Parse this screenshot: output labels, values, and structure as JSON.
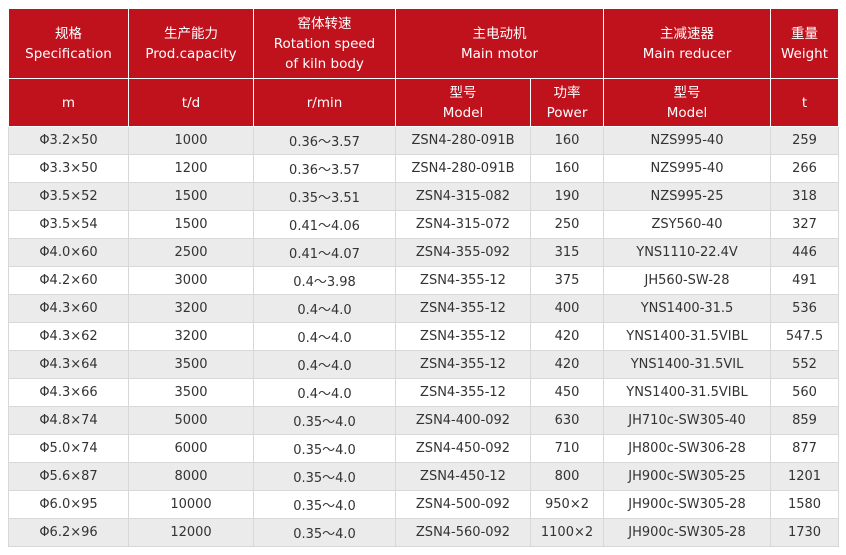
{
  "header": {
    "row1": [
      [
        "规格",
        "Specification"
      ],
      [
        "生产能力",
        "Prod.capacity"
      ],
      [
        "窑体转速",
        "Rotation speed",
        "of kiln body"
      ],
      [
        "主电动机",
        "Main motor"
      ],
      [
        "主减速器",
        "Main reducer"
      ],
      [
        "重量",
        "Weight"
      ]
    ],
    "row2": [
      [
        "m"
      ],
      [
        "t/d"
      ],
      [
        "r/min"
      ],
      [
        "型号",
        "Model"
      ],
      [
        "功率",
        "Power"
      ],
      [
        "型号",
        "Model"
      ],
      [
        "t"
      ]
    ]
  },
  "table": {
    "rows": [
      [
        "Φ3.2×50",
        "1000",
        "0.36～3.57",
        "ZSN4-280-091B",
        "160",
        "NZS995-40",
        "259"
      ],
      [
        "Φ3.3×50",
        "1200",
        "0.36～3.57",
        "ZSN4-280-091B",
        "160",
        "NZS995-40",
        "266"
      ],
      [
        "Φ3.5×52",
        "1500",
        "0.35～3.51",
        "ZSN4-315-082",
        "190",
        "NZS995-25",
        "318"
      ],
      [
        "Φ3.5×54",
        "1500",
        "0.41～4.06",
        "ZSN4-315-072",
        "250",
        "ZSY560-40",
        "327"
      ],
      [
        "Φ4.0×60",
        "2500",
        "0.41～4.07",
        "ZSN4-355-092",
        "315",
        "YNS1110-22.4V",
        "446"
      ],
      [
        "Φ4.2×60",
        "3000",
        "0.4～3.98",
        "ZSN4-355-12",
        "375",
        "JH560-SW-28",
        "491"
      ],
      [
        "Φ4.3×60",
        "3200",
        "0.4～4.0",
        "ZSN4-355-12",
        "400",
        "YNS1400-31.5",
        "536"
      ],
      [
        "Φ4.3×62",
        "3200",
        "0.4～4.0",
        "ZSN4-355-12",
        "420",
        "YNS1400-31.5VIBL",
        "547.5"
      ],
      [
        "Φ4.3×64",
        "3500",
        "0.4～4.0",
        "ZSN4-355-12",
        "420",
        "YNS1400-31.5VIL",
        "552"
      ],
      [
        "Φ4.3×66",
        "3500",
        "0.4～4.0",
        "ZSN4-355-12",
        "450",
        "YNS1400-31.5VIBL",
        "560"
      ],
      [
        "Φ4.8×74",
        "5000",
        "0.35～4.0",
        "ZSN4-400-092",
        "630",
        "JH710c-SW305-40",
        "859"
      ],
      [
        "Φ5.0×74",
        "6000",
        "0.35～4.0",
        "ZSN4-450-092",
        "710",
        "JH800c-SW306-28",
        "877"
      ],
      [
        "Φ5.6×87",
        "8000",
        "0.35～4.0",
        "ZSN4-450-12",
        "800",
        "JH900c-SW305-25",
        "1201"
      ],
      [
        "Φ6.0×95",
        "10000",
        "0.35～4.0",
        "ZSN4-500-092",
        "950×2",
        "JH900c-SW305-28",
        "1580"
      ],
      [
        "Φ6.2×96",
        "12000",
        "0.35～4.0",
        "ZSN4-560-092",
        "1100×2",
        "JH900c-SW305-28",
        "1730"
      ]
    ]
  }
}
